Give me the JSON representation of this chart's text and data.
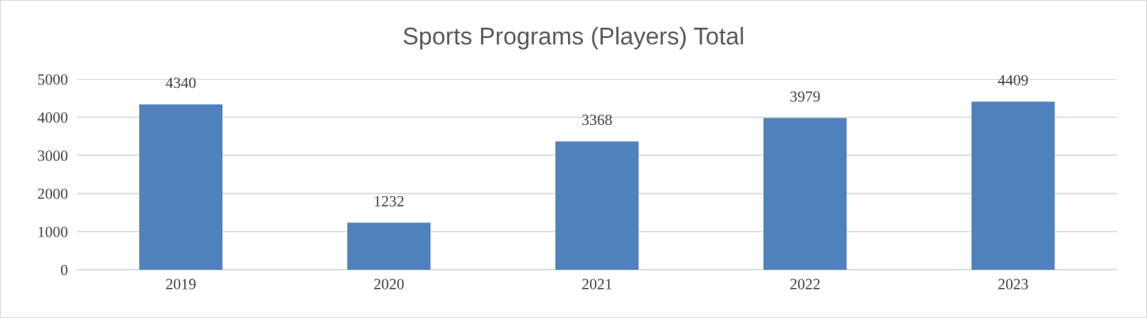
{
  "chart_data": {
    "type": "bar",
    "title": "Sports Programs (Players) Total",
    "categories": [
      "2019",
      "2020",
      "2021",
      "2022",
      "2023"
    ],
    "values": [
      4340,
      1232,
      3368,
      3979,
      4409
    ],
    "color": "#4f81bd",
    "ylim": [
      0,
      5000
    ],
    "yticks": [
      0,
      1000,
      2000,
      3000,
      4000,
      5000
    ],
    "grid": "y",
    "data_labels": true
  }
}
